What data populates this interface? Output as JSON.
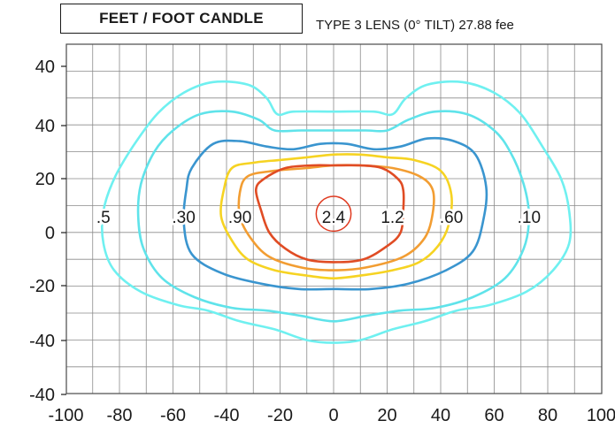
{
  "header": {
    "title": "FEET / FOOT CANDLE",
    "subtitle": "TYPE 3 LENS (0° TILT) 27.88 fee"
  },
  "chart_data": {
    "type": "contour",
    "title": "FEET / FOOT CANDLE",
    "subtitle": "TYPE 3 LENS (0° TILT) 27.88 fee",
    "x_ticks": [
      "-100",
      "-80",
      "-60",
      "-40",
      "-20",
      "0",
      "20",
      "40",
      "60",
      "80",
      "100"
    ],
    "x_tick_values": [
      -100,
      -80,
      -60,
      -40,
      -20,
      0,
      20,
      40,
      60,
      80,
      100
    ],
    "y_tick_labels": [
      "40",
      "40",
      "20",
      "0",
      "-20",
      "-40",
      "-40"
    ],
    "xlim": [
      -100,
      100
    ],
    "grid": true,
    "legend": "none",
    "contours": [
      {
        "name": ".10",
        "label": ".10",
        "label_at": [
          73,
          6
        ],
        "color": "#6ff0f0",
        "points": [
          [
            0,
            -41
          ],
          [
            -10,
            -40
          ],
          [
            -22,
            -36
          ],
          [
            -35,
            -33
          ],
          [
            -47,
            -29
          ],
          [
            -58,
            -27
          ],
          [
            -72,
            -22
          ],
          [
            -82,
            -14
          ],
          [
            -86,
            -4
          ],
          [
            -86,
            8
          ],
          [
            -82,
            20
          ],
          [
            -75,
            32
          ],
          [
            -66,
            44
          ],
          [
            -56,
            52
          ],
          [
            -45,
            56
          ],
          [
            -32,
            55
          ],
          [
            -25,
            50
          ],
          [
            -21,
            44
          ],
          [
            -15,
            45
          ],
          [
            0,
            45
          ],
          [
            15,
            45
          ],
          [
            22,
            44
          ],
          [
            27,
            50
          ],
          [
            35,
            55
          ],
          [
            48,
            56
          ],
          [
            60,
            52
          ],
          [
            70,
            44
          ],
          [
            78,
            32
          ],
          [
            85,
            20
          ],
          [
            88,
            8
          ],
          [
            88,
            -4
          ],
          [
            82,
            -14
          ],
          [
            72,
            -22
          ],
          [
            58,
            -27
          ],
          [
            46,
            -29
          ],
          [
            34,
            -33
          ],
          [
            22,
            -36
          ],
          [
            10,
            -40
          ]
        ]
      },
      {
        "name": ".5",
        "label": ".5",
        "label_at": [
          -86,
          6
        ],
        "color": "#5fe3ea",
        "points": [
          [
            0,
            -33
          ],
          [
            -12,
            -31
          ],
          [
            -25,
            -29
          ],
          [
            -38,
            -28
          ],
          [
            -52,
            -24
          ],
          [
            -64,
            -17
          ],
          [
            -71,
            -6
          ],
          [
            -73,
            6
          ],
          [
            -72,
            18
          ],
          [
            -67,
            30
          ],
          [
            -60,
            38
          ],
          [
            -50,
            44
          ],
          [
            -38,
            45
          ],
          [
            -28,
            42
          ],
          [
            -22,
            38
          ],
          [
            -12,
            38
          ],
          [
            0,
            38
          ],
          [
            12,
            38
          ],
          [
            20,
            38
          ],
          [
            28,
            42
          ],
          [
            38,
            45
          ],
          [
            50,
            44
          ],
          [
            60,
            38
          ],
          [
            66,
            30
          ],
          [
            71,
            18
          ],
          [
            73,
            6
          ],
          [
            71,
            -6
          ],
          [
            64,
            -17
          ],
          [
            52,
            -24
          ],
          [
            38,
            -28
          ],
          [
            25,
            -29
          ],
          [
            12,
            -31
          ]
        ]
      },
      {
        "name": ".30",
        "label": ".30",
        "label_at": [
          -56,
          6
        ],
        "color": "#3a95cf",
        "points": [
          [
            0,
            -21
          ],
          [
            -13,
            -21
          ],
          [
            -27,
            -19
          ],
          [
            -42,
            -15
          ],
          [
            -53,
            -8
          ],
          [
            -56,
            4
          ],
          [
            -55,
            16
          ],
          [
            -53,
            24
          ],
          [
            -45,
            33
          ],
          [
            -35,
            34
          ],
          [
            -25,
            32
          ],
          [
            -15,
            31
          ],
          [
            -5,
            33
          ],
          [
            5,
            33
          ],
          [
            15,
            31
          ],
          [
            25,
            32
          ],
          [
            35,
            35
          ],
          [
            45,
            34
          ],
          [
            53,
            29
          ],
          [
            57,
            17
          ],
          [
            56,
            5
          ],
          [
            52,
            -7
          ],
          [
            42,
            -14
          ],
          [
            28,
            -19
          ],
          [
            14,
            -21
          ]
        ]
      },
      {
        "name": ".90",
        "label": ".90",
        "label_at": [
          -35,
          6
        ],
        "color": "#f6d322",
        "points": [
          [
            0,
            -17
          ],
          [
            -10,
            -16
          ],
          [
            -22,
            -14
          ],
          [
            -32,
            -10
          ],
          [
            -38,
            -3
          ],
          [
            -42,
            6
          ],
          [
            -41,
            16
          ],
          [
            -38,
            24
          ],
          [
            -30,
            26
          ],
          [
            -20,
            27
          ],
          [
            -10,
            28
          ],
          [
            0,
            29
          ],
          [
            10,
            29
          ],
          [
            20,
            28
          ],
          [
            30,
            27
          ],
          [
            40,
            23
          ],
          [
            44,
            14
          ],
          [
            43,
            3
          ],
          [
            39,
            -5
          ],
          [
            32,
            -11
          ],
          [
            22,
            -14
          ],
          [
            10,
            -16
          ]
        ]
      },
      {
        "name": ".60",
        "label": ".60",
        "label_at": [
          44,
          6
        ],
        "color": "#f29d32",
        "points": [
          [
            0,
            -14
          ],
          [
            -12,
            -13
          ],
          [
            -24,
            -9
          ],
          [
            -31,
            -2
          ],
          [
            -35,
            6
          ],
          [
            -35,
            15
          ],
          [
            -32,
            21
          ],
          [
            -22,
            23
          ],
          [
            -10,
            24
          ],
          [
            0,
            25
          ],
          [
            10,
            25
          ],
          [
            22,
            24
          ],
          [
            32,
            21
          ],
          [
            37,
            16
          ],
          [
            37,
            7
          ],
          [
            34,
            -2
          ],
          [
            26,
            -9
          ],
          [
            12,
            -13
          ]
        ]
      },
      {
        "name": "1.2",
        "label": "1.2",
        "label_at": [
          22,
          6
        ],
        "color": "#e04c24",
        "points": [
          [
            0,
            -11
          ],
          [
            -10,
            -10
          ],
          [
            -18,
            -6
          ],
          [
            -24,
            0
          ],
          [
            -27,
            8
          ],
          [
            -29,
            16
          ],
          [
            -26,
            20
          ],
          [
            -18,
            24
          ],
          [
            -8,
            25
          ],
          [
            0,
            25
          ],
          [
            10,
            25
          ],
          [
            18,
            24
          ],
          [
            24,
            20
          ],
          [
            26,
            16
          ],
          [
            26,
            8
          ],
          [
            25,
            0
          ],
          [
            20,
            -5
          ],
          [
            11,
            -10
          ]
        ]
      },
      {
        "name": "2.4",
        "label": "2.4",
        "label_at": [
          0,
          6
        ],
        "color": "#e03a20",
        "circle": {
          "center": [
            0,
            7
          ],
          "radius": 6.5
        }
      }
    ]
  }
}
